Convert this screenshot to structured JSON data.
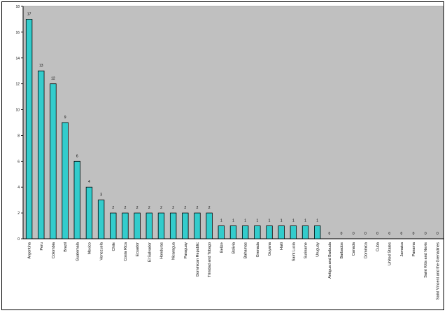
{
  "chart_data": {
    "type": "bar",
    "title": "",
    "xlabel": "",
    "ylabel": "",
    "ylim": [
      0,
      18
    ],
    "yticks": [
      0,
      2,
      4,
      6,
      8,
      10,
      12,
      14,
      16,
      18
    ],
    "grid": false,
    "legend": "none",
    "colors": {
      "plot_area": "#c0c0c0",
      "bar": "#33cccc",
      "bar_border": "#000000",
      "background": "#ffffff"
    },
    "categories": [
      "Argentina",
      "Peru",
      "Colombia",
      "Brazil",
      "Guatemala",
      "Mexico",
      "Venezuela",
      "Chile",
      "Costa Rica",
      "Ecuador",
      "El Salvador",
      "Honduras",
      "Nicaragua",
      "Paraguay",
      "Dominican Republic",
      "Trinidad and Tobago",
      "Belize",
      "Bolivia",
      "Bahamas",
      "Grenada",
      "Guyana",
      "Haiti",
      "Saint Lucia",
      "Suriname",
      "Uruguay",
      "Antigua and Barbuda",
      "Barbados",
      "Canada",
      "Dominica",
      "Cuba",
      "United States",
      "Jamaica",
      "Panama",
      "Saint Kitts and Nevis",
      "Saint Vincent and the Grenadines"
    ],
    "values": [
      17,
      13,
      12,
      9,
      6,
      4,
      3,
      2,
      2,
      2,
      2,
      2,
      2,
      2,
      2,
      2,
      1,
      1,
      1,
      1,
      1,
      1,
      1,
      1,
      1,
      0,
      0,
      0,
      0,
      0,
      0,
      0,
      0,
      0,
      0
    ]
  }
}
